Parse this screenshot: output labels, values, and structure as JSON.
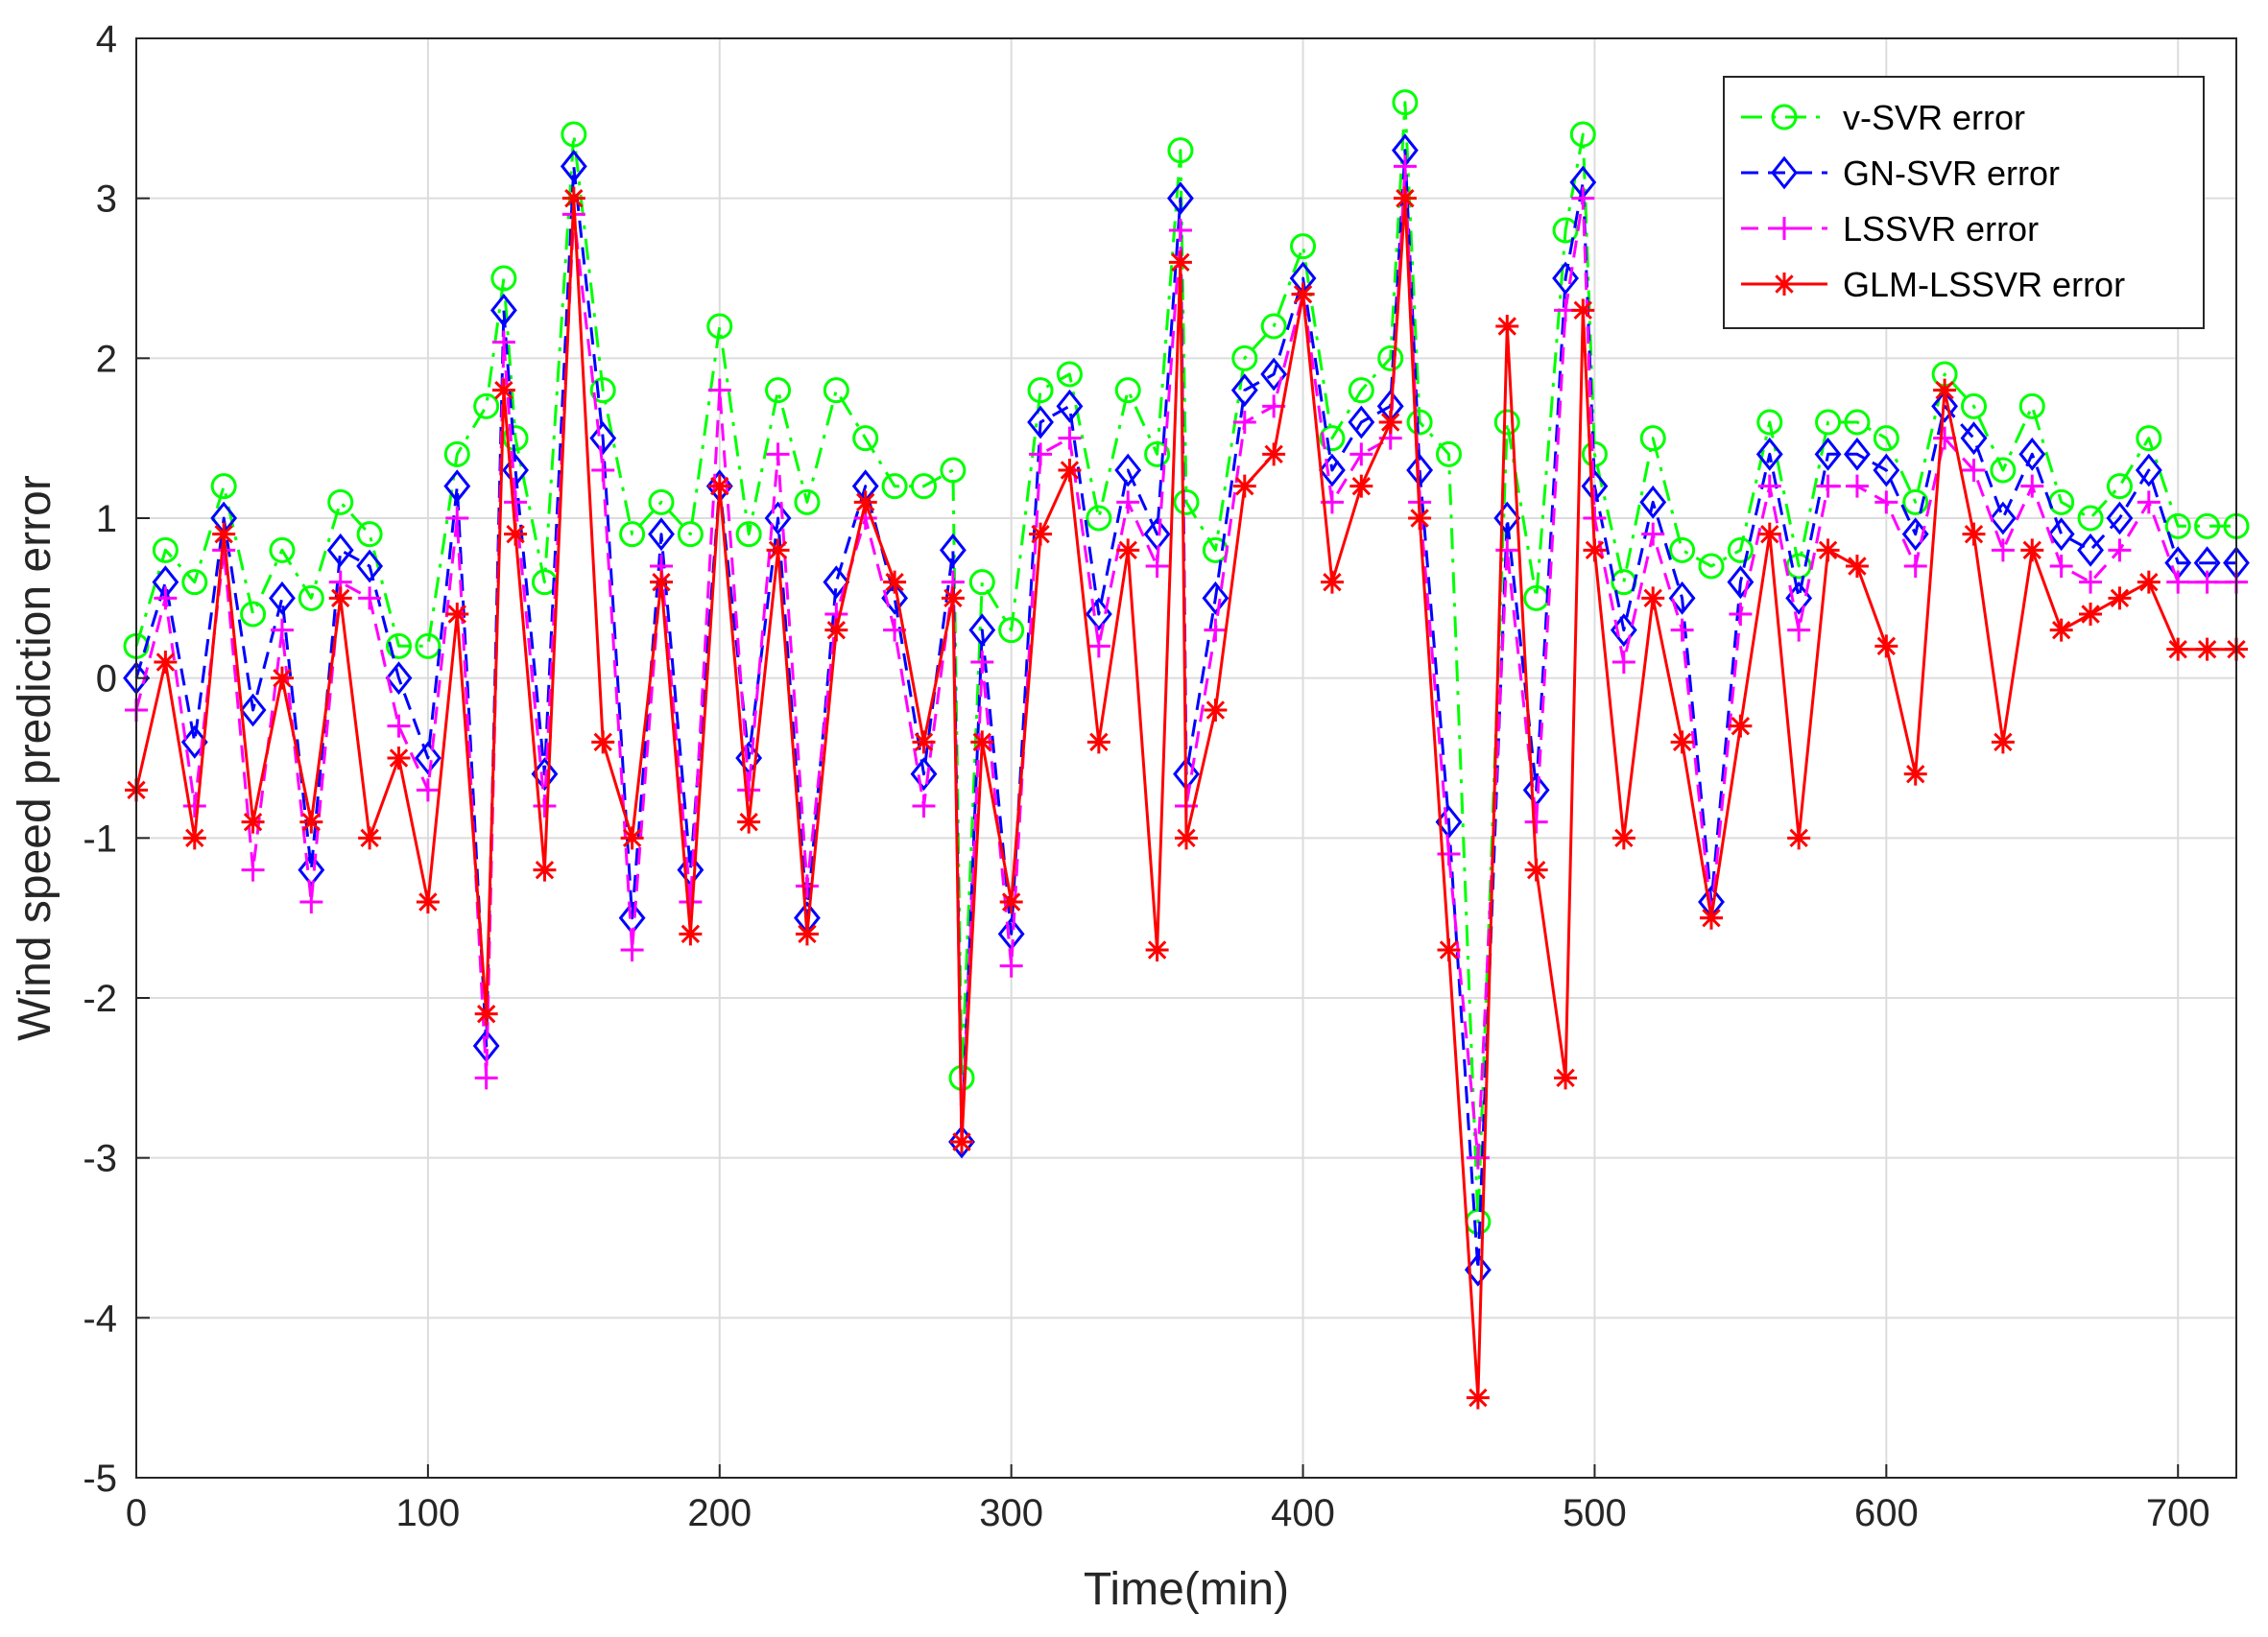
{
  "chart_data": {
    "type": "line",
    "title": "",
    "xlabel": "Time(min)",
    "ylabel": "Wind speed prediction error",
    "xlim": [
      0,
      720
    ],
    "ylim": [
      -5,
      4
    ],
    "xticks": [
      0,
      100,
      200,
      300,
      400,
      500,
      600,
      700
    ],
    "yticks": [
      -5,
      -4,
      -3,
      -2,
      -1,
      0,
      1,
      2,
      3,
      4
    ],
    "grid": true,
    "legend_position": "top-right",
    "series": [
      {
        "name": "v-SVR error",
        "color": "#00ff00",
        "marker": "circle",
        "line_style": "dash-dot",
        "x": [
          0,
          10,
          20,
          30,
          40,
          50,
          60,
          70,
          80,
          90,
          100,
          110,
          120,
          126,
          130,
          140,
          150,
          160,
          170,
          180,
          190,
          200,
          210,
          220,
          230,
          240,
          250,
          260,
          270,
          280,
          283,
          290,
          300,
          310,
          320,
          330,
          340,
          350,
          358,
          360,
          370,
          380,
          390,
          400,
          410,
          420,
          430,
          435,
          440,
          450,
          460,
          470,
          480,
          490,
          496,
          500,
          510,
          520,
          530,
          540,
          550,
          560,
          570,
          580,
          590,
          600,
          610,
          620,
          630,
          640,
          650,
          660,
          670,
          680,
          690,
          700,
          710,
          720
        ],
        "values": [
          0.2,
          0.8,
          0.6,
          1.2,
          0.4,
          0.8,
          0.5,
          1.1,
          0.9,
          0.2,
          0.2,
          1.4,
          1.7,
          2.5,
          1.5,
          0.6,
          3.4,
          1.8,
          0.9,
          1.1,
          0.9,
          2.2,
          0.9,
          1.8,
          1.1,
          1.8,
          1.5,
          1.2,
          1.2,
          1.3,
          -2.5,
          0.6,
          0.3,
          1.8,
          1.9,
          1.0,
          1.8,
          1.4,
          3.3,
          1.1,
          0.8,
          2.0,
          2.2,
          2.7,
          1.5,
          1.8,
          2.0,
          3.6,
          1.6,
          1.4,
          -3.4,
          1.6,
          0.5,
          2.8,
          3.4,
          1.4,
          0.6,
          1.5,
          0.8,
          0.7,
          0.8,
          1.6,
          0.7,
          1.6,
          1.6,
          1.5,
          1.1,
          1.9,
          1.7,
          1.3,
          1.7,
          1.1,
          1.0,
          1.2,
          1.5,
          0.95,
          0.95,
          0.95
        ]
      },
      {
        "name": "GN-SVR error",
        "color": "#0000ff",
        "marker": "diamond",
        "line_style": "dashed",
        "x": [
          0,
          10,
          20,
          30,
          40,
          50,
          60,
          70,
          80,
          90,
          100,
          110,
          120,
          126,
          130,
          140,
          150,
          160,
          170,
          180,
          190,
          200,
          210,
          220,
          230,
          240,
          250,
          260,
          270,
          280,
          283,
          290,
          300,
          310,
          320,
          330,
          340,
          350,
          358,
          360,
          370,
          380,
          390,
          400,
          410,
          420,
          430,
          435,
          440,
          450,
          460,
          470,
          480,
          490,
          496,
          500,
          510,
          520,
          530,
          540,
          550,
          560,
          570,
          580,
          590,
          600,
          610,
          620,
          630,
          640,
          650,
          660,
          670,
          680,
          690,
          700,
          710,
          720
        ],
        "values": [
          0.0,
          0.6,
          -0.4,
          1.0,
          -0.2,
          0.5,
          -1.2,
          0.8,
          0.7,
          0.0,
          -0.5,
          1.2,
          -2.3,
          2.3,
          1.3,
          -0.6,
          3.2,
          1.5,
          -1.5,
          0.9,
          -1.2,
          1.2,
          -0.5,
          1.0,
          -1.5,
          0.6,
          1.2,
          0.5,
          -0.6,
          0.8,
          -2.9,
          0.3,
          -1.6,
          1.6,
          1.7,
          0.4,
          1.3,
          0.9,
          3.0,
          -0.6,
          0.5,
          1.8,
          1.9,
          2.5,
          1.3,
          1.6,
          1.7,
          3.3,
          1.3,
          -0.9,
          -3.7,
          1.0,
          -0.7,
          2.5,
          3.1,
          1.2,
          0.3,
          1.1,
          0.5,
          -1.4,
          0.6,
          1.4,
          0.5,
          1.4,
          1.4,
          1.3,
          0.9,
          1.7,
          1.5,
          1.0,
          1.4,
          0.9,
          0.8,
          1.0,
          1.3,
          0.72,
          0.72,
          0.72
        ]
      },
      {
        "name": "LSSVR error",
        "color": "#ff00ff",
        "marker": "plus",
        "line_style": "dashed",
        "x": [
          0,
          10,
          20,
          30,
          40,
          50,
          60,
          70,
          80,
          90,
          100,
          110,
          120,
          126,
          130,
          140,
          150,
          160,
          170,
          180,
          190,
          200,
          210,
          220,
          230,
          240,
          250,
          260,
          270,
          280,
          283,
          290,
          300,
          310,
          320,
          330,
          340,
          350,
          358,
          360,
          370,
          380,
          390,
          400,
          410,
          420,
          430,
          435,
          440,
          450,
          460,
          470,
          480,
          490,
          496,
          500,
          510,
          520,
          530,
          540,
          550,
          560,
          570,
          580,
          590,
          600,
          610,
          620,
          630,
          640,
          650,
          660,
          670,
          680,
          690,
          700,
          710,
          720
        ],
        "values": [
          -0.2,
          0.5,
          -0.8,
          0.8,
          -1.2,
          0.3,
          -1.4,
          0.6,
          0.5,
          -0.3,
          -0.7,
          1.0,
          -2.5,
          2.1,
          1.1,
          -0.8,
          2.9,
          1.3,
          -1.7,
          0.7,
          -1.4,
          1.8,
          -0.7,
          1.4,
          -1.3,
          0.4,
          1.0,
          0.3,
          -0.8,
          0.6,
          -2.9,
          0.1,
          -1.8,
          1.4,
          1.5,
          0.2,
          1.1,
          0.7,
          2.8,
          -0.8,
          0.3,
          1.6,
          1.7,
          2.4,
          1.1,
          1.4,
          1.5,
          3.2,
          1.1,
          -1.1,
          -3.0,
          0.8,
          -0.9,
          2.3,
          3.0,
          1.0,
          0.1,
          0.9,
          0.3,
          -1.5,
          0.4,
          1.2,
          0.3,
          1.2,
          1.2,
          1.1,
          0.7,
          1.5,
          1.3,
          0.8,
          1.2,
          0.7,
          0.6,
          0.8,
          1.1,
          0.6,
          0.6,
          0.6
        ]
      },
      {
        "name": "GLM-LSSVR error",
        "color": "#ff0000",
        "marker": "star",
        "line_style": "solid",
        "x": [
          0,
          10,
          20,
          30,
          40,
          50,
          60,
          70,
          80,
          90,
          100,
          110,
          120,
          126,
          130,
          140,
          150,
          160,
          170,
          180,
          190,
          200,
          210,
          220,
          230,
          240,
          250,
          260,
          270,
          280,
          283,
          290,
          300,
          310,
          320,
          330,
          340,
          350,
          358,
          360,
          370,
          380,
          390,
          400,
          410,
          420,
          430,
          435,
          440,
          450,
          460,
          470,
          480,
          490,
          496,
          500,
          510,
          520,
          530,
          540,
          550,
          560,
          570,
          580,
          590,
          600,
          610,
          620,
          630,
          640,
          650,
          660,
          670,
          680,
          690,
          700,
          710,
          720
        ],
        "values": [
          -0.7,
          0.1,
          -1.0,
          0.9,
          -0.9,
          0.0,
          -0.9,
          0.5,
          -1.0,
          -0.5,
          -1.4,
          0.4,
          -2.1,
          1.8,
          0.9,
          -1.2,
          3.0,
          -0.4,
          -1.0,
          0.6,
          -1.6,
          1.2,
          -0.9,
          0.8,
          -1.6,
          0.3,
          1.1,
          0.6,
          -0.4,
          0.5,
          -2.9,
          -0.4,
          -1.4,
          0.9,
          1.3,
          -0.4,
          0.8,
          -1.7,
          2.6,
          -1.0,
          -0.2,
          1.2,
          1.4,
          2.4,
          0.6,
          1.2,
          1.6,
          3.0,
          1.0,
          -1.7,
          -4.5,
          2.2,
          -1.2,
          -2.5,
          2.3,
          0.8,
          -1.0,
          0.5,
          -0.4,
          -1.5,
          -0.3,
          0.9,
          -1.0,
          0.8,
          0.7,
          0.2,
          -0.6,
          1.8,
          0.9,
          -0.4,
          0.8,
          0.3,
          0.4,
          0.5,
          0.6,
          0.18,
          0.18,
          0.18
        ]
      }
    ]
  }
}
